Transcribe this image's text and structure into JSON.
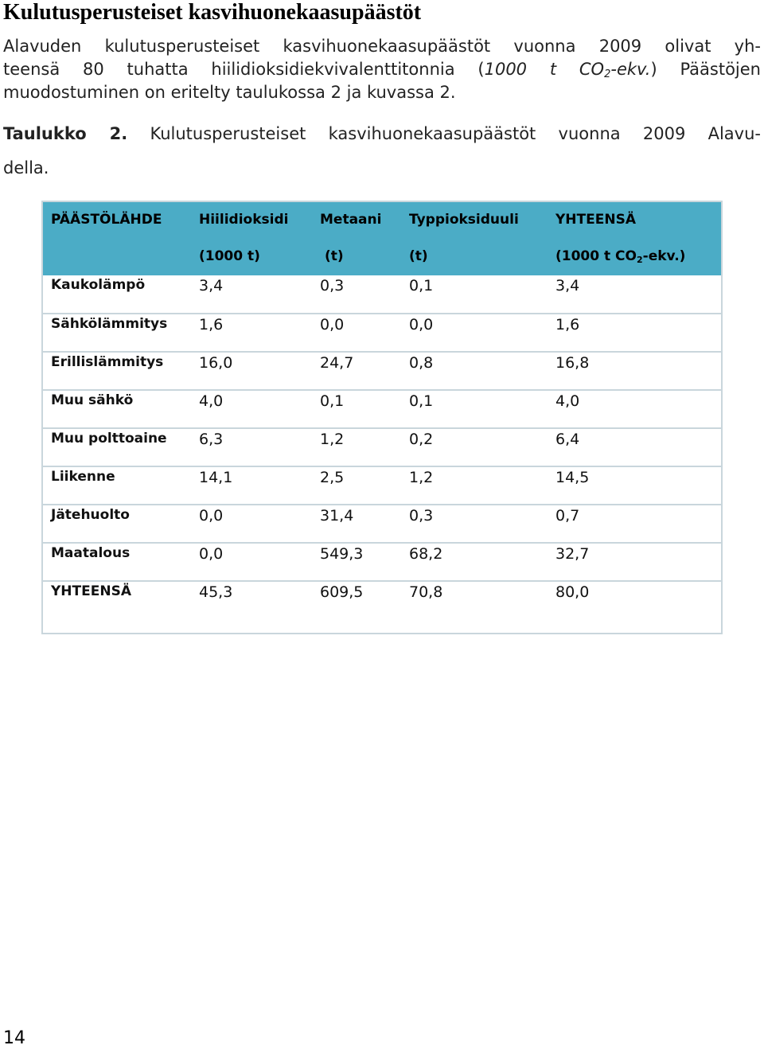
{
  "heading": "Kulutusperusteiset kasvihuonekaasupäästöt",
  "intro": {
    "line1": "Alavuden kulutusperusteiset kasvihuonekaasupäästöt vuonna 2009 olivat yh-",
    "line2_a": "teensä 80 tuhatta hiilidioksidiekvivalenttitonnia (",
    "line2_italic_a": "1000 t CO",
    "line2_sub": "2",
    "line2_italic_b": "-ekv.",
    "line2_b": ") Päästöjen",
    "line3": "muodostuminen on eritelty taulukossa 2 ja kuvassa 2."
  },
  "caption": {
    "tag": "Taulukko 2.",
    "text_line1": "Kulutusperusteiset kasvihuonekaasupäästöt vuonna 2009 Alavu-",
    "text_line2": "della."
  },
  "table": {
    "header_row1": [
      "PÄÄSTÖLÄHDE",
      "Hiilidioksidi",
      "Metaani",
      "Typpioksiduuli",
      "YHTEENSÄ"
    ],
    "header_row2": {
      "c2": "(1000 t)",
      "c3": "(t)",
      "c4": "(t)",
      "c5_a": "(1000 t CO",
      "c5_sub": "2",
      "c5_b": "-ekv.)"
    },
    "rows": [
      [
        "Kaukolämpö",
        "3,4",
        "0,3",
        "0,1",
        "3,4"
      ],
      [
        "Sähkölämmitys",
        "1,6",
        "0,0",
        "0,0",
        "1,6"
      ],
      [
        "Erillislämmitys",
        "16,0",
        "24,7",
        "0,8",
        "16,8"
      ],
      [
        "Muu sähkö",
        "4,0",
        "0,1",
        "0,1",
        "4,0"
      ],
      [
        "Muu polttoaine",
        "6,3",
        "1,2",
        "0,2",
        "6,4"
      ],
      [
        "Liikenne",
        "14,1",
        "2,5",
        "1,2",
        "14,5"
      ],
      [
        "Jätehuolto",
        "0,0",
        "31,4",
        "0,3",
        "0,7"
      ],
      [
        "Maatalous",
        "0,0",
        "549,3",
        "68,2",
        "32,7"
      ],
      [
        "YHTEENSÄ",
        "45,3",
        "609,5",
        "70,8",
        "80,0"
      ]
    ]
  },
  "page_number": "14",
  "colors": {
    "header_background": "#4bacc6",
    "table_border": "#c9d6dc"
  }
}
